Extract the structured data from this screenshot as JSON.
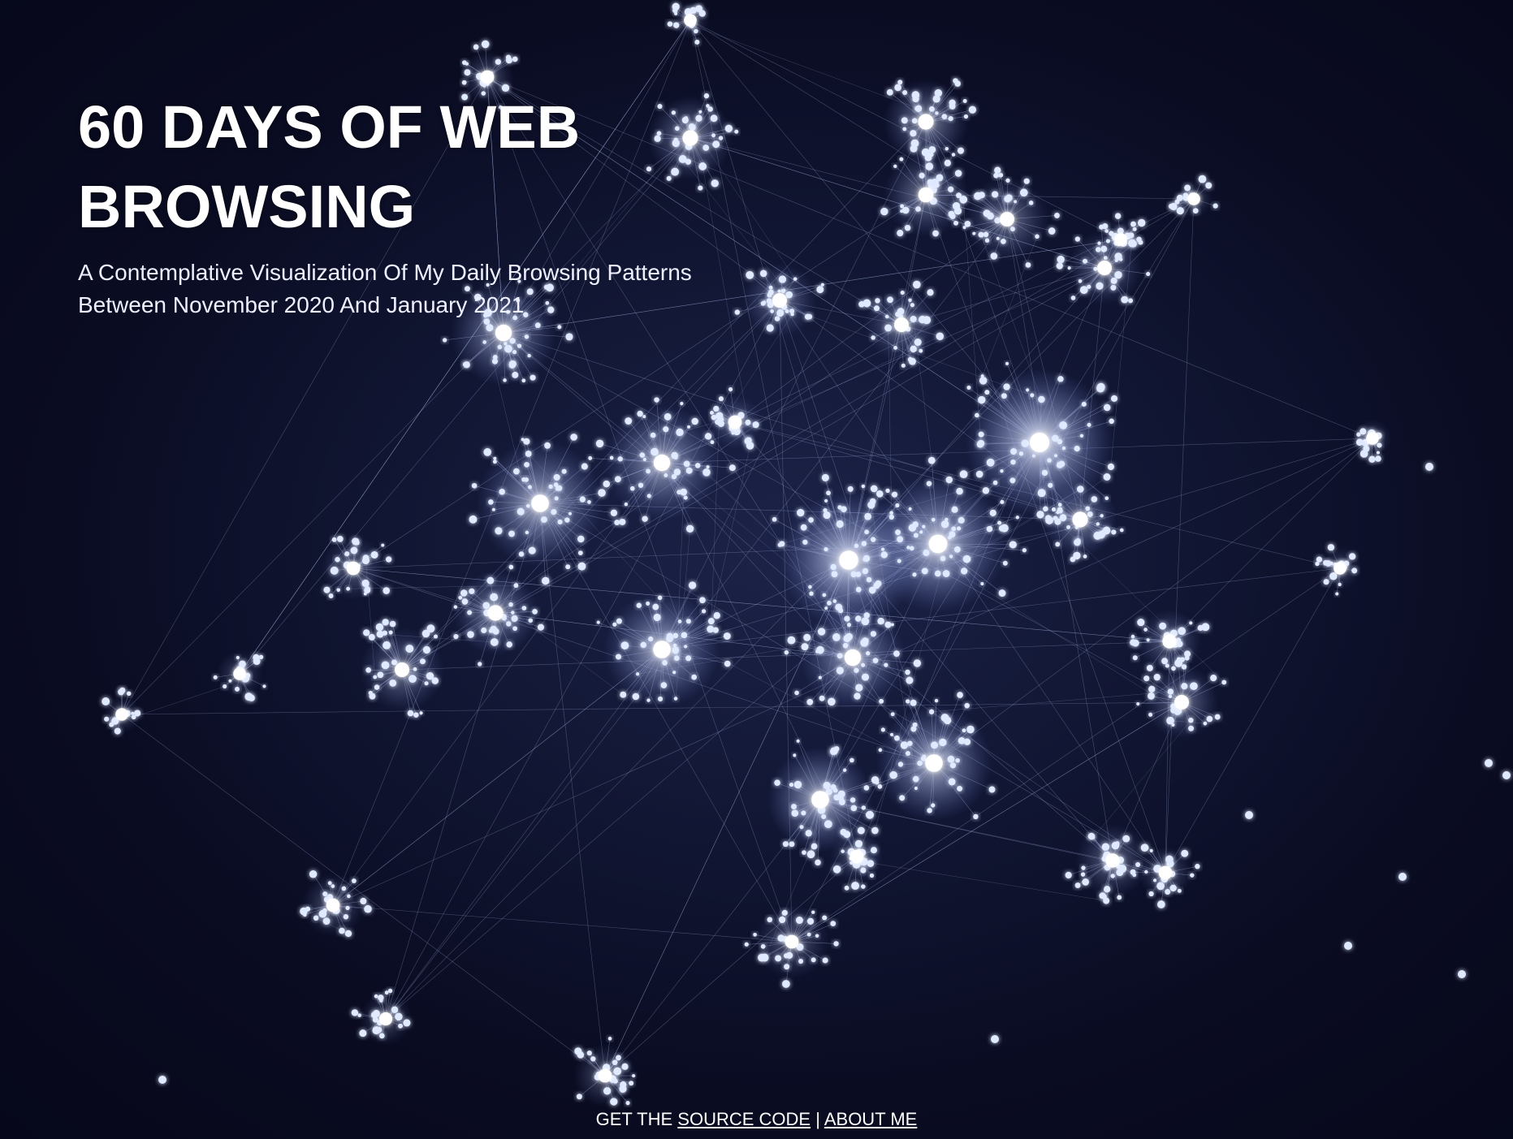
{
  "header": {
    "title": "60 DAYS OF WEB BROWSING",
    "subtitle": "A Contemplative Visualization Of My Daily Browsing Patterns Between November 2020 And January 2021"
  },
  "footer": {
    "prefix": "GET THE",
    "source_code_link": "SOURCE CODE",
    "separator": "|",
    "about_link": "ABOUT ME"
  },
  "colors": {
    "background": "#07081a",
    "node": "#dfe9ff",
    "node_glow": "#8fa8ff",
    "edge": "#aab6e6"
  }
}
